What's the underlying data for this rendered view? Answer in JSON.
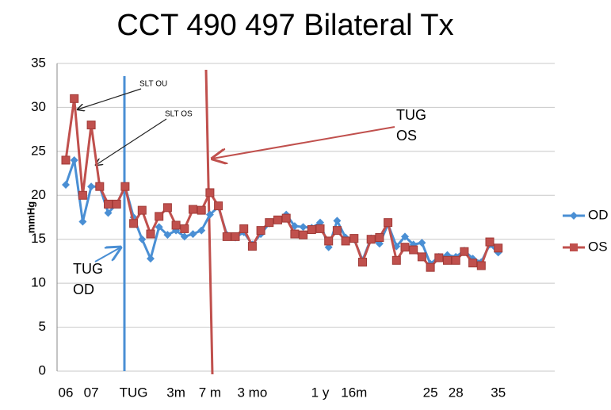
{
  "chart_data": {
    "type": "line",
    "title": "CCT 490 497  Bilateral Tx",
    "y_label": "mmHg",
    "categories": [
      "06",
      null,
      null,
      "07",
      null,
      null,
      null,
      null,
      "TUG",
      null,
      null,
      null,
      null,
      "3m",
      null,
      null,
      null,
      "7 m",
      null,
      null,
      null,
      null,
      "3 mo",
      null,
      null,
      null,
      null,
      null,
      null,
      null,
      "1 y",
      null,
      null,
      null,
      "16m",
      null,
      null,
      null,
      null,
      null,
      null,
      null,
      null,
      "25",
      null,
      null,
      "28",
      null,
      null,
      null,
      null,
      "35"
    ],
    "series": [
      {
        "name": "OD",
        "color": "#4a8fd4",
        "marker": "diamond",
        "values": [
          21.2,
          24,
          17,
          21,
          21,
          18,
          19,
          21,
          17.5,
          15,
          12.8,
          16.4,
          15.5,
          16,
          15.3,
          15.6,
          16,
          17.8,
          18.7,
          15.5,
          15.2,
          15.8,
          14.4,
          15.6,
          16.8,
          17.2,
          17.8,
          16.5,
          16.4,
          16.3,
          16.9,
          14.1,
          17.1,
          15.2,
          15,
          12.6,
          15.1,
          14.5,
          16.7,
          14.2,
          15.3,
          14.4,
          14.6,
          12.2,
          13,
          13.2,
          13,
          13.7,
          12.8,
          12.4,
          14.4,
          13.5
        ]
      },
      {
        "name": "OS",
        "color": "#c0504d",
        "marker": "square",
        "values": [
          24,
          31,
          20,
          28,
          21,
          19,
          19,
          21,
          16.8,
          18.3,
          15.6,
          17.6,
          18.6,
          16.6,
          16.2,
          18.4,
          18.3,
          20.3,
          18.8,
          15.3,
          15.3,
          16.2,
          14.2,
          16,
          16.9,
          17.2,
          17.4,
          15.6,
          15.5,
          16.1,
          16.2,
          14.8,
          16,
          14.8,
          15.1,
          12.4,
          15,
          15.2,
          16.9,
          12.6,
          14.1,
          13.8,
          13,
          11.8,
          12.9,
          12.6,
          12.6,
          13.6,
          12.3,
          12,
          14.7,
          14
        ]
      }
    ],
    "ylim": [
      0,
      35
    ],
    "yticks": [
      0,
      5,
      10,
      15,
      20,
      25,
      30,
      35
    ],
    "grid": true,
    "legend": "right",
    "annotations": [
      {
        "lines": [
          "SLT OU"
        ]
      },
      {
        "lines": [
          "SLT  OS"
        ]
      },
      {
        "lines": [
          "TUG",
          "OS"
        ]
      },
      {
        "lines": [
          "TUG",
          "OD"
        ]
      }
    ]
  }
}
